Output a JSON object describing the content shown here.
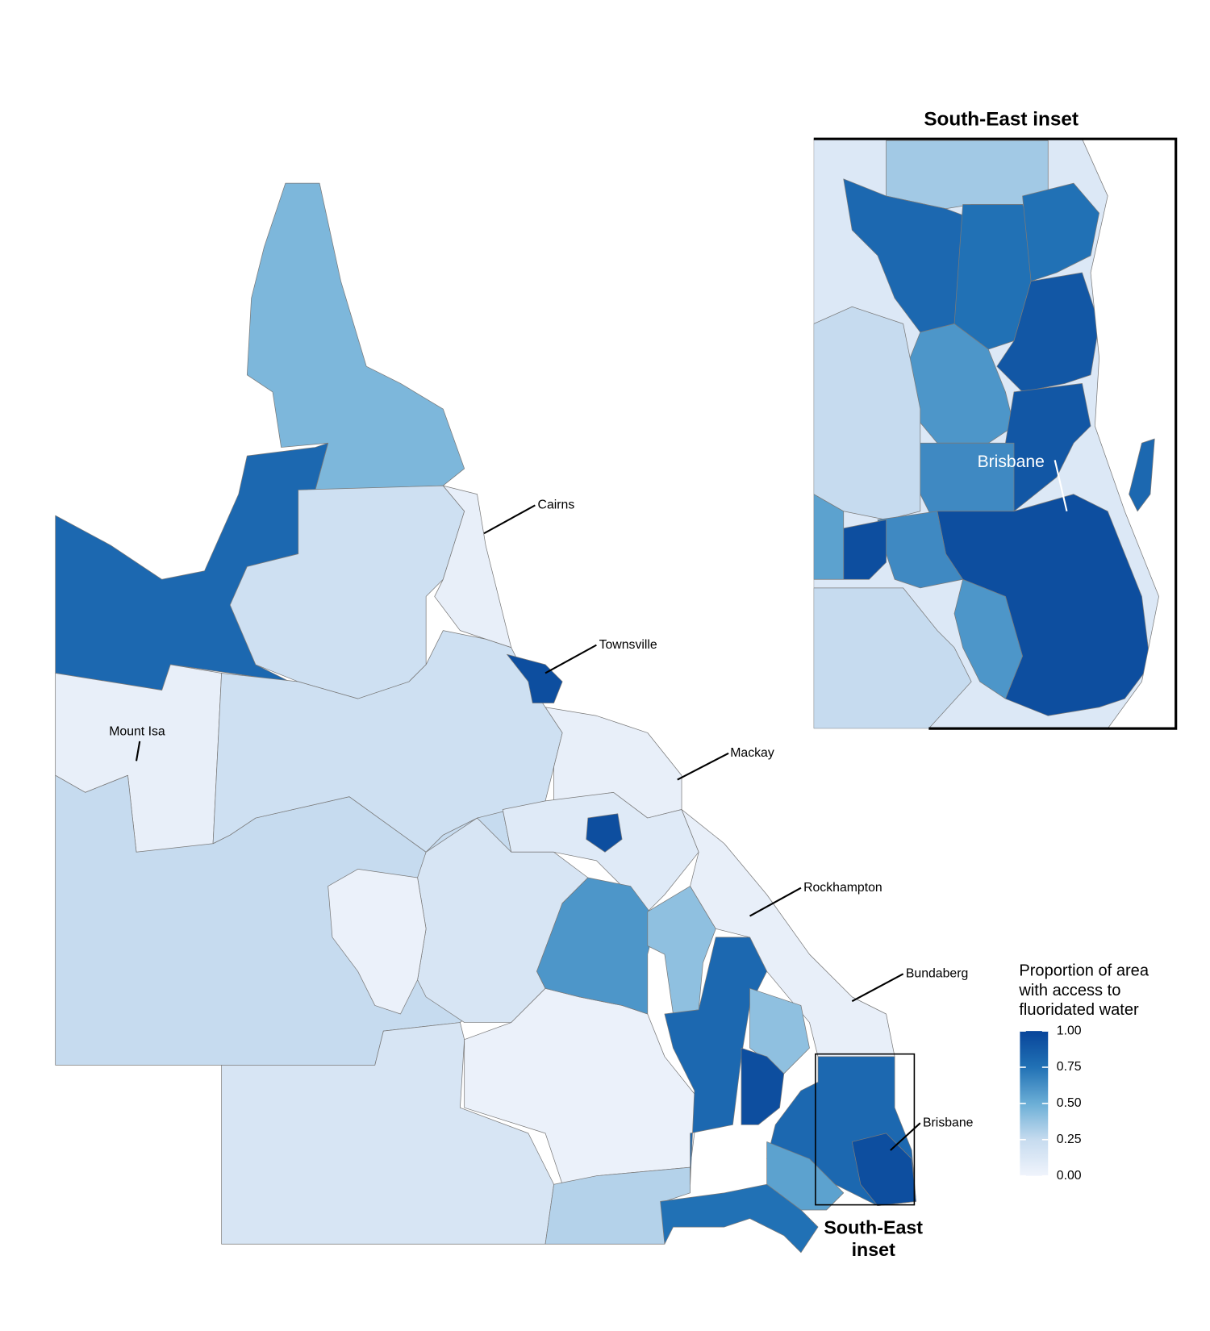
{
  "map": {
    "type": "choropleth",
    "legend_title": "Proportion of area with access to fluoridated water",
    "colorscale": [
      "#f0f4fc",
      "#c6dbef",
      "#6baed6",
      "#2171b5",
      "#08459a"
    ],
    "clim": [
      0,
      1
    ],
    "cticks": [
      {
        "value": 0,
        "label": "0.00"
      },
      {
        "value": 0.25,
        "label": "0.25"
      },
      {
        "value": 0.5,
        "label": "0.50"
      },
      {
        "value": 0.75,
        "label": "0.75"
      },
      {
        "value": 1,
        "label": "1.00"
      }
    ],
    "places": [
      "Cairns",
      "Townsville",
      "Mount Isa",
      "Mackay",
      "Rockhampton",
      "Bundaberg",
      "Brisbane"
    ],
    "inset_place": "Brisbane",
    "inset_title": "South-East inset",
    "box_label": "South-East inset",
    "regions": [
      0.45,
      0.8,
      0.2,
      0.05,
      0.95,
      0.05,
      0.25,
      0.2,
      0.05,
      0.95,
      0.1,
      0.6,
      0.4,
      0.03,
      0.15,
      0.15,
      0.03,
      0.3,
      0.75,
      0.8,
      0.95,
      0.4,
      0.05,
      0.8,
      0.95,
      0.55
    ],
    "inset_regions": [
      0.12,
      0.35,
      0.8,
      0.75,
      0.75,
      0.9,
      0.6,
      0.9,
      0.65,
      0.95,
      0.6,
      0.65,
      0.95,
      0.55,
      0.25,
      0.25,
      0.8
    ]
  }
}
